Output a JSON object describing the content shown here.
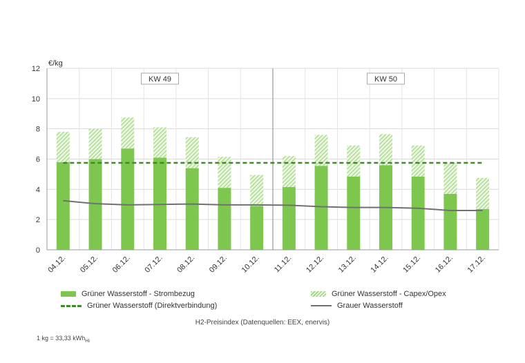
{
  "chart_data": {
    "type": "bar",
    "ylabel": "€/kg",
    "ylim": [
      0,
      12
    ],
    "yticks": [
      0,
      2,
      4,
      6,
      8,
      10,
      12
    ],
    "grid": true,
    "legend_placement": "bottom",
    "categories": [
      "04.12.",
      "05.12.",
      "06.12.",
      "07.12.",
      "08.12.",
      "09.12.",
      "10.12.",
      "11.12.",
      "12.12.",
      "13.12.",
      "14.12.",
      "15.12.",
      "16.12.",
      "17.12."
    ],
    "week_labels": [
      "KW 49",
      "KW 50"
    ],
    "series": [
      {
        "name": "Grüner Wasserstoff - Strombezug",
        "kind": "bar-stack-base",
        "color": "#7dc74f",
        "values": [
          5.8,
          6.0,
          6.7,
          6.1,
          5.4,
          4.1,
          2.9,
          4.15,
          5.55,
          4.85,
          5.6,
          4.85,
          3.7,
          2.7
        ]
      },
      {
        "name": "Grüner Wasserstoff - Capex/Opex",
        "kind": "bar-stack-top",
        "color": "#9ed47c",
        "values": [
          2.0,
          2.0,
          2.05,
          2.0,
          2.05,
          2.05,
          2.05,
          2.05,
          2.05,
          2.05,
          2.05,
          2.05,
          2.05,
          2.05
        ]
      },
      {
        "name": "Grüner Wasserstoff (Direktverbindung)",
        "kind": "dashed-line",
        "color": "#3e8a28",
        "values": [
          5.75,
          5.75,
          5.75,
          5.75,
          5.75,
          5.75,
          5.75,
          5.75,
          5.75,
          5.75,
          5.75,
          5.75,
          5.75,
          5.75
        ]
      },
      {
        "name": "Grauer Wasserstoff",
        "kind": "line",
        "color": "#707070",
        "values": [
          3.25,
          3.05,
          2.97,
          3.0,
          3.03,
          2.97,
          2.97,
          2.95,
          2.85,
          2.8,
          2.8,
          2.75,
          2.6,
          2.6
        ]
      }
    ]
  },
  "source_text": "H2-Preisindex (Datenquellen: EEX, enervis)",
  "footnote": {
    "prefix": "1 kg = 33,33 kWh",
    "sub": "Hi"
  }
}
